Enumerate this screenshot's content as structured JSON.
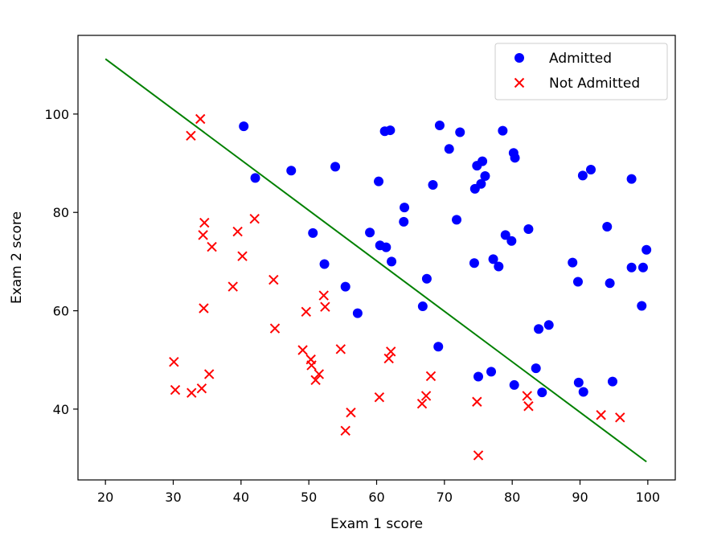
{
  "chart_data": {
    "type": "scatter",
    "title": "",
    "xlabel": "Exam 1 score",
    "ylabel": "Exam 2 score",
    "xlim": [
      15.95,
      104.05
    ],
    "ylim": [
      25.6,
      116.0
    ],
    "xticks": [
      20,
      30,
      40,
      50,
      60,
      70,
      80,
      90,
      100
    ],
    "yticks": [
      40,
      60,
      80,
      100
    ],
    "grid": false,
    "legend_position": "top-right",
    "series": [
      {
        "name": "Admitted",
        "marker": "circle",
        "color": "#0000ff",
        "points": [
          [
            40.4,
            97.5
          ],
          [
            42.1,
            87.0
          ],
          [
            47.4,
            88.5
          ],
          [
            50.6,
            75.8
          ],
          [
            52.3,
            69.5
          ],
          [
            53.9,
            89.3
          ],
          [
            55.4,
            64.9
          ],
          [
            57.2,
            59.5
          ],
          [
            59.0,
            75.9
          ],
          [
            60.3,
            86.3
          ],
          [
            60.5,
            73.3
          ],
          [
            61.4,
            72.9
          ],
          [
            61.2,
            96.5
          ],
          [
            62.0,
            96.7
          ],
          [
            62.2,
            70.0
          ],
          [
            64.1,
            81.0
          ],
          [
            64.0,
            78.1
          ],
          [
            66.8,
            60.9
          ],
          [
            67.4,
            66.5
          ],
          [
            68.3,
            85.6
          ],
          [
            69.1,
            52.7
          ],
          [
            69.3,
            97.7
          ],
          [
            70.7,
            92.9
          ],
          [
            71.8,
            78.5
          ],
          [
            72.3,
            96.3
          ],
          [
            74.4,
            69.7
          ],
          [
            74.5,
            84.8
          ],
          [
            74.8,
            89.5
          ],
          [
            75.0,
            46.6
          ],
          [
            75.4,
            85.8
          ],
          [
            75.6,
            90.4
          ],
          [
            76.0,
            87.4
          ],
          [
            76.9,
            47.6
          ],
          [
            77.2,
            70.5
          ],
          [
            78.0,
            69.0
          ],
          [
            78.6,
            96.6
          ],
          [
            79.0,
            75.4
          ],
          [
            79.9,
            74.2
          ],
          [
            80.2,
            92.1
          ],
          [
            80.4,
            91.1
          ],
          [
            80.3,
            44.9
          ],
          [
            82.4,
            76.6
          ],
          [
            83.5,
            48.3
          ],
          [
            83.9,
            56.3
          ],
          [
            84.4,
            43.4
          ],
          [
            85.4,
            57.1
          ],
          [
            88.9,
            69.8
          ],
          [
            89.7,
            65.9
          ],
          [
            89.8,
            45.4
          ],
          [
            90.4,
            87.5
          ],
          [
            90.5,
            43.5
          ],
          [
            91.6,
            88.7
          ],
          [
            94.0,
            77.1
          ],
          [
            94.4,
            65.6
          ],
          [
            94.8,
            45.6
          ],
          [
            97.6,
            86.8
          ],
          [
            97.6,
            68.8
          ],
          [
            99.1,
            61.0
          ],
          [
            99.3,
            68.8
          ],
          [
            99.8,
            72.4
          ]
        ]
      },
      {
        "name": "Not Admitted",
        "marker": "x",
        "color": "#ff0000",
        "points": [
          [
            30.1,
            49.6
          ],
          [
            30.3,
            43.9
          ],
          [
            32.6,
            95.6
          ],
          [
            32.7,
            43.3
          ],
          [
            34.0,
            99.0
          ],
          [
            34.2,
            44.2
          ],
          [
            34.4,
            75.4
          ],
          [
            34.5,
            60.5
          ],
          [
            34.6,
            77.9
          ],
          [
            35.3,
            47.1
          ],
          [
            35.7,
            73.0
          ],
          [
            38.8,
            64.9
          ],
          [
            39.5,
            76.1
          ],
          [
            40.2,
            71.1
          ],
          [
            42.0,
            78.7
          ],
          [
            44.8,
            66.3
          ],
          [
            45.0,
            56.4
          ],
          [
            49.1,
            52.0
          ],
          [
            49.6,
            59.8
          ],
          [
            50.3,
            50.1
          ],
          [
            50.4,
            48.9
          ],
          [
            51.0,
            45.9
          ],
          [
            51.5,
            47.1
          ],
          [
            52.2,
            63.1
          ],
          [
            52.4,
            60.8
          ],
          [
            54.7,
            52.2
          ],
          [
            55.4,
            35.6
          ],
          [
            56.2,
            39.3
          ],
          [
            60.4,
            42.4
          ],
          [
            61.8,
            50.3
          ],
          [
            62.1,
            51.7
          ],
          [
            66.7,
            41.1
          ],
          [
            67.3,
            42.7
          ],
          [
            68.0,
            46.7
          ],
          [
            74.8,
            41.5
          ],
          [
            75.0,
            30.6
          ],
          [
            82.2,
            42.7
          ],
          [
            82.4,
            40.6
          ],
          [
            93.1,
            38.8
          ],
          [
            95.9,
            38.3
          ]
        ]
      }
    ],
    "decision_boundary": {
      "color": "#008000",
      "points": [
        [
          20,
          111.2
        ],
        [
          99.8,
          29.3
        ]
      ]
    }
  }
}
